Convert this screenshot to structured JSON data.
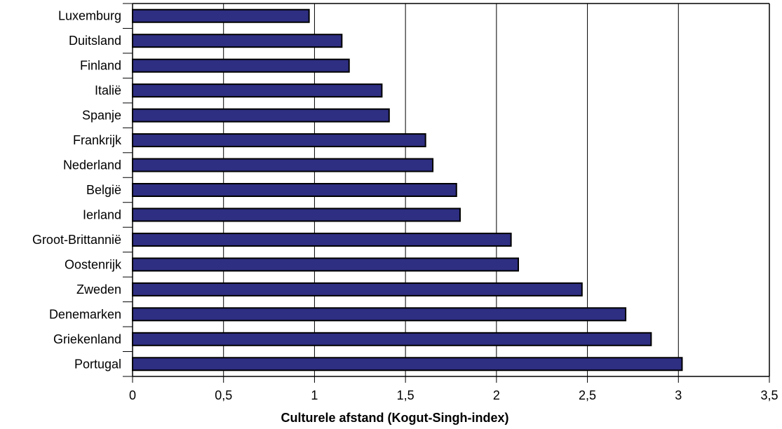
{
  "chart_data": {
    "type": "bar",
    "orientation": "horizontal",
    "categories": [
      "Luxemburg",
      "Duitsland",
      "Finland",
      "Italië",
      "Spanje",
      "Frankrijk",
      "Nederland",
      "België",
      "Ierland",
      "Groot-Brittannië",
      "Oostenrijk",
      "Zweden",
      "Denemarken",
      "Griekenland",
      "Portugal"
    ],
    "values": [
      0.97,
      1.15,
      1.19,
      1.37,
      1.41,
      1.61,
      1.65,
      1.78,
      1.8,
      2.08,
      2.12,
      2.47,
      2.71,
      2.85,
      3.02
    ],
    "xlabel": "Culturele afstand (Kogut-Singh-index)",
    "ylabel": "",
    "xlim": [
      0,
      3.5
    ],
    "x_ticks": [
      {
        "value": 0,
        "label": "0"
      },
      {
        "value": 0.5,
        "label": "0,5"
      },
      {
        "value": 1,
        "label": "1"
      },
      {
        "value": 1.5,
        "label": "1,5"
      },
      {
        "value": 2,
        "label": "2"
      },
      {
        "value": 2.5,
        "label": "2,5"
      },
      {
        "value": 3,
        "label": "3"
      },
      {
        "value": 3.5,
        "label": "3,5"
      }
    ],
    "grid": "vertical",
    "legend": "none",
    "colors": {
      "bar_fill": "#2e2e82",
      "bar_stroke": "#000000",
      "grid": "#000000",
      "axis": "#000000"
    }
  }
}
